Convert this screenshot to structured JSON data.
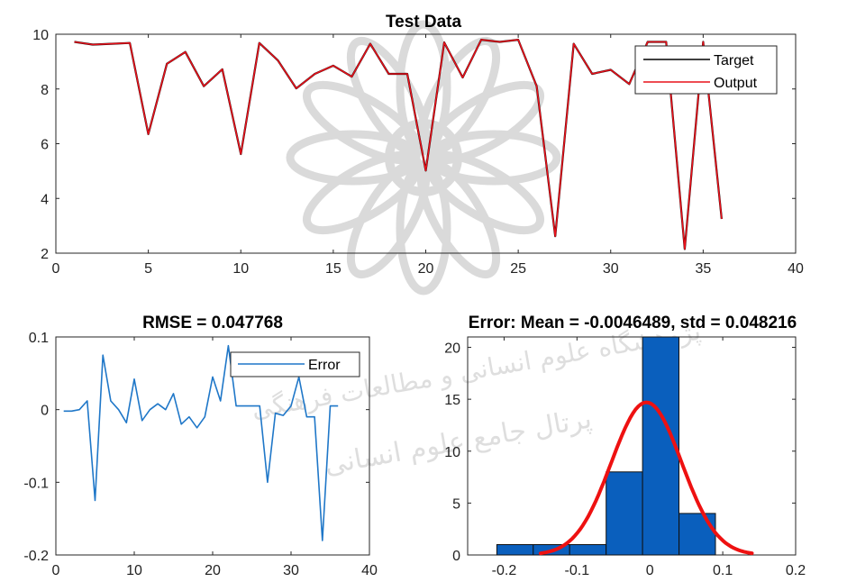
{
  "chart_data": [
    {
      "type": "line",
      "title": "Test Data",
      "xlabel": "",
      "ylabel": "",
      "xlim": [
        0,
        40
      ],
      "ylim": [
        2,
        10
      ],
      "xticks": [
        0,
        5,
        10,
        15,
        20,
        25,
        30,
        35,
        40
      ],
      "yticks": [
        2,
        4,
        6,
        8,
        10
      ],
      "legend_position": "top-right",
      "grid": false,
      "x": [
        1,
        2,
        3,
        4,
        5,
        6,
        7,
        8,
        9,
        10,
        11,
        12,
        13,
        14,
        15,
        16,
        17,
        18,
        19,
        20,
        21,
        22,
        23,
        24,
        25,
        26,
        27,
        28,
        29,
        30,
        31,
        32,
        33,
        34,
        35,
        36
      ],
      "series": [
        {
          "name": "Target",
          "color": "#000000",
          "values": [
            9.72,
            9.62,
            9.65,
            9.68,
            6.35,
            8.92,
            9.35,
            8.1,
            8.72,
            5.62,
            9.68,
            9.05,
            8.02,
            8.55,
            8.85,
            8.45,
            9.65,
            8.55,
            8.55,
            5.02,
            9.7,
            8.42,
            9.8,
            9.72,
            9.8,
            8.1,
            2.62,
            9.65,
            8.55,
            8.7,
            8.18,
            9.72,
            9.72,
            2.15,
            9.72,
            3.25
          ]
        },
        {
          "name": "Output",
          "color": "#e8101a",
          "values": [
            9.72,
            9.62,
            9.65,
            9.68,
            6.35,
            8.92,
            9.35,
            8.1,
            8.72,
            5.62,
            9.68,
            9.05,
            8.02,
            8.55,
            8.85,
            8.45,
            9.65,
            8.55,
            8.55,
            5.02,
            9.7,
            8.42,
            9.8,
            9.72,
            9.8,
            8.1,
            2.62,
            9.65,
            8.55,
            8.7,
            8.18,
            9.72,
            9.72,
            2.15,
            9.72,
            3.25
          ]
        }
      ]
    },
    {
      "type": "line",
      "title": "RMSE = 0.047768",
      "xlabel": "",
      "ylabel": "",
      "xlim": [
        0,
        40
      ],
      "ylim": [
        -0.2,
        0.1
      ],
      "xticks": [
        0,
        10,
        20,
        30,
        40
      ],
      "yticks": [
        -0.2,
        -0.1,
        0,
        0.1
      ],
      "ytick_labels": [
        "-0.2",
        "-0.1",
        "0",
        "0.1"
      ],
      "legend_position": "top-right",
      "grid": false,
      "x": [
        1,
        2,
        3,
        4,
        5,
        6,
        7,
        8,
        9,
        10,
        11,
        12,
        13,
        14,
        15,
        16,
        17,
        18,
        19,
        20,
        21,
        22,
        23,
        24,
        25,
        26,
        27,
        28,
        29,
        30,
        31,
        32,
        33,
        34,
        35,
        36
      ],
      "series": [
        {
          "name": "Error",
          "color": "#1f77c8",
          "values": [
            -0.002,
            -0.002,
            0.0,
            0.012,
            -0.125,
            0.075,
            0.012,
            0.0,
            -0.018,
            0.042,
            -0.015,
            0.0,
            0.008,
            0.0,
            0.022,
            -0.02,
            -0.01,
            -0.025,
            -0.01,
            0.045,
            0.012,
            0.088,
            0.005,
            0.005,
            0.005,
            0.005,
            -0.1,
            -0.005,
            -0.008,
            0.005,
            0.045,
            -0.01,
            -0.01,
            -0.18,
            0.005,
            0.005
          ]
        }
      ]
    },
    {
      "type": "bar",
      "title": "Error: Mean = -0.0046489, std = 0.048216",
      "xlabel": "",
      "ylabel": "",
      "xlim": [
        -0.25,
        0.2
      ],
      "ylim": [
        0,
        21
      ],
      "xticks": [
        -0.2,
        -0.1,
        0,
        0.1,
        0.2
      ],
      "xtick_labels": [
        "-0.2",
        "-0.1",
        "0",
        "0.1",
        "0.2"
      ],
      "yticks": [
        0,
        5,
        10,
        15,
        20
      ],
      "bins": [
        {
          "from": -0.21,
          "to": -0.16,
          "count": 1
        },
        {
          "from": -0.16,
          "to": -0.11,
          "count": 1
        },
        {
          "from": -0.11,
          "to": -0.06,
          "count": 1
        },
        {
          "from": -0.06,
          "to": -0.01,
          "count": 8
        },
        {
          "from": -0.01,
          "to": 0.04,
          "count": 21
        },
        {
          "from": 0.04,
          "to": 0.09,
          "count": 4
        }
      ],
      "bar_color": "#0a5fbd",
      "fit_curve": {
        "color": "#ee1111",
        "mean": -0.0046489,
        "std": 0.048216,
        "from": -0.15,
        "to": 0.14,
        "peak": 14.7
      }
    }
  ],
  "watermark": {
    "line1": "پژوهشگاه علوم انسانی و مطالعات فرهنگی",
    "line2": "پرتال جامع علوم انسانی"
  }
}
